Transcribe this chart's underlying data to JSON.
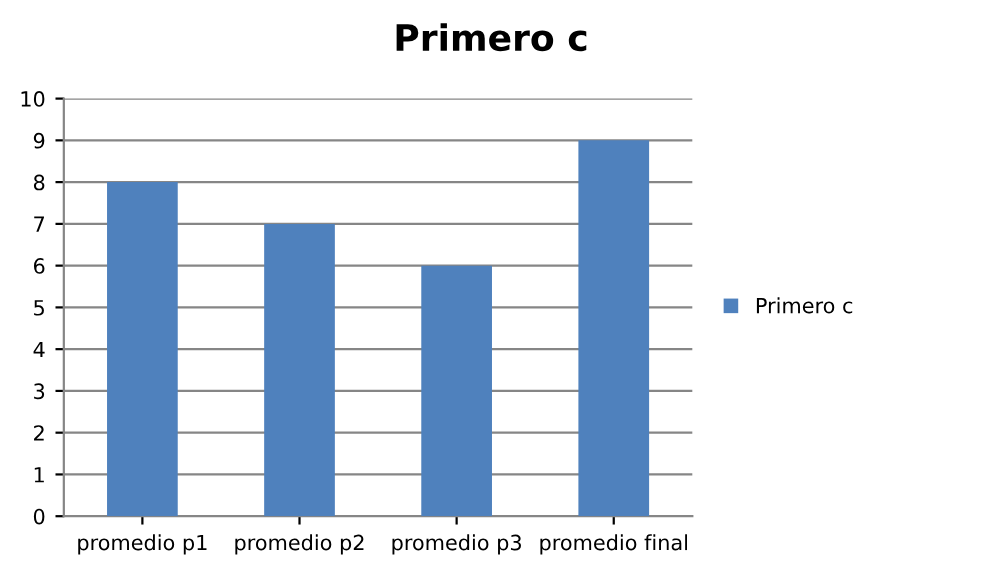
{
  "chart_data": {
    "type": "bar",
    "title": "Primero c",
    "categories": [
      "promedio p1",
      "promedio p2",
      "promedio p3",
      "promedio final"
    ],
    "series": [
      {
        "name": "Primero c",
        "color": "#4f81bd",
        "values": [
          8,
          7,
          6,
          9
        ]
      }
    ],
    "ylim": [
      0,
      10
    ],
    "yticks": [
      0,
      1,
      2,
      3,
      4,
      5,
      6,
      7,
      8,
      9,
      10
    ],
    "grid": "y",
    "legend": "right"
  }
}
